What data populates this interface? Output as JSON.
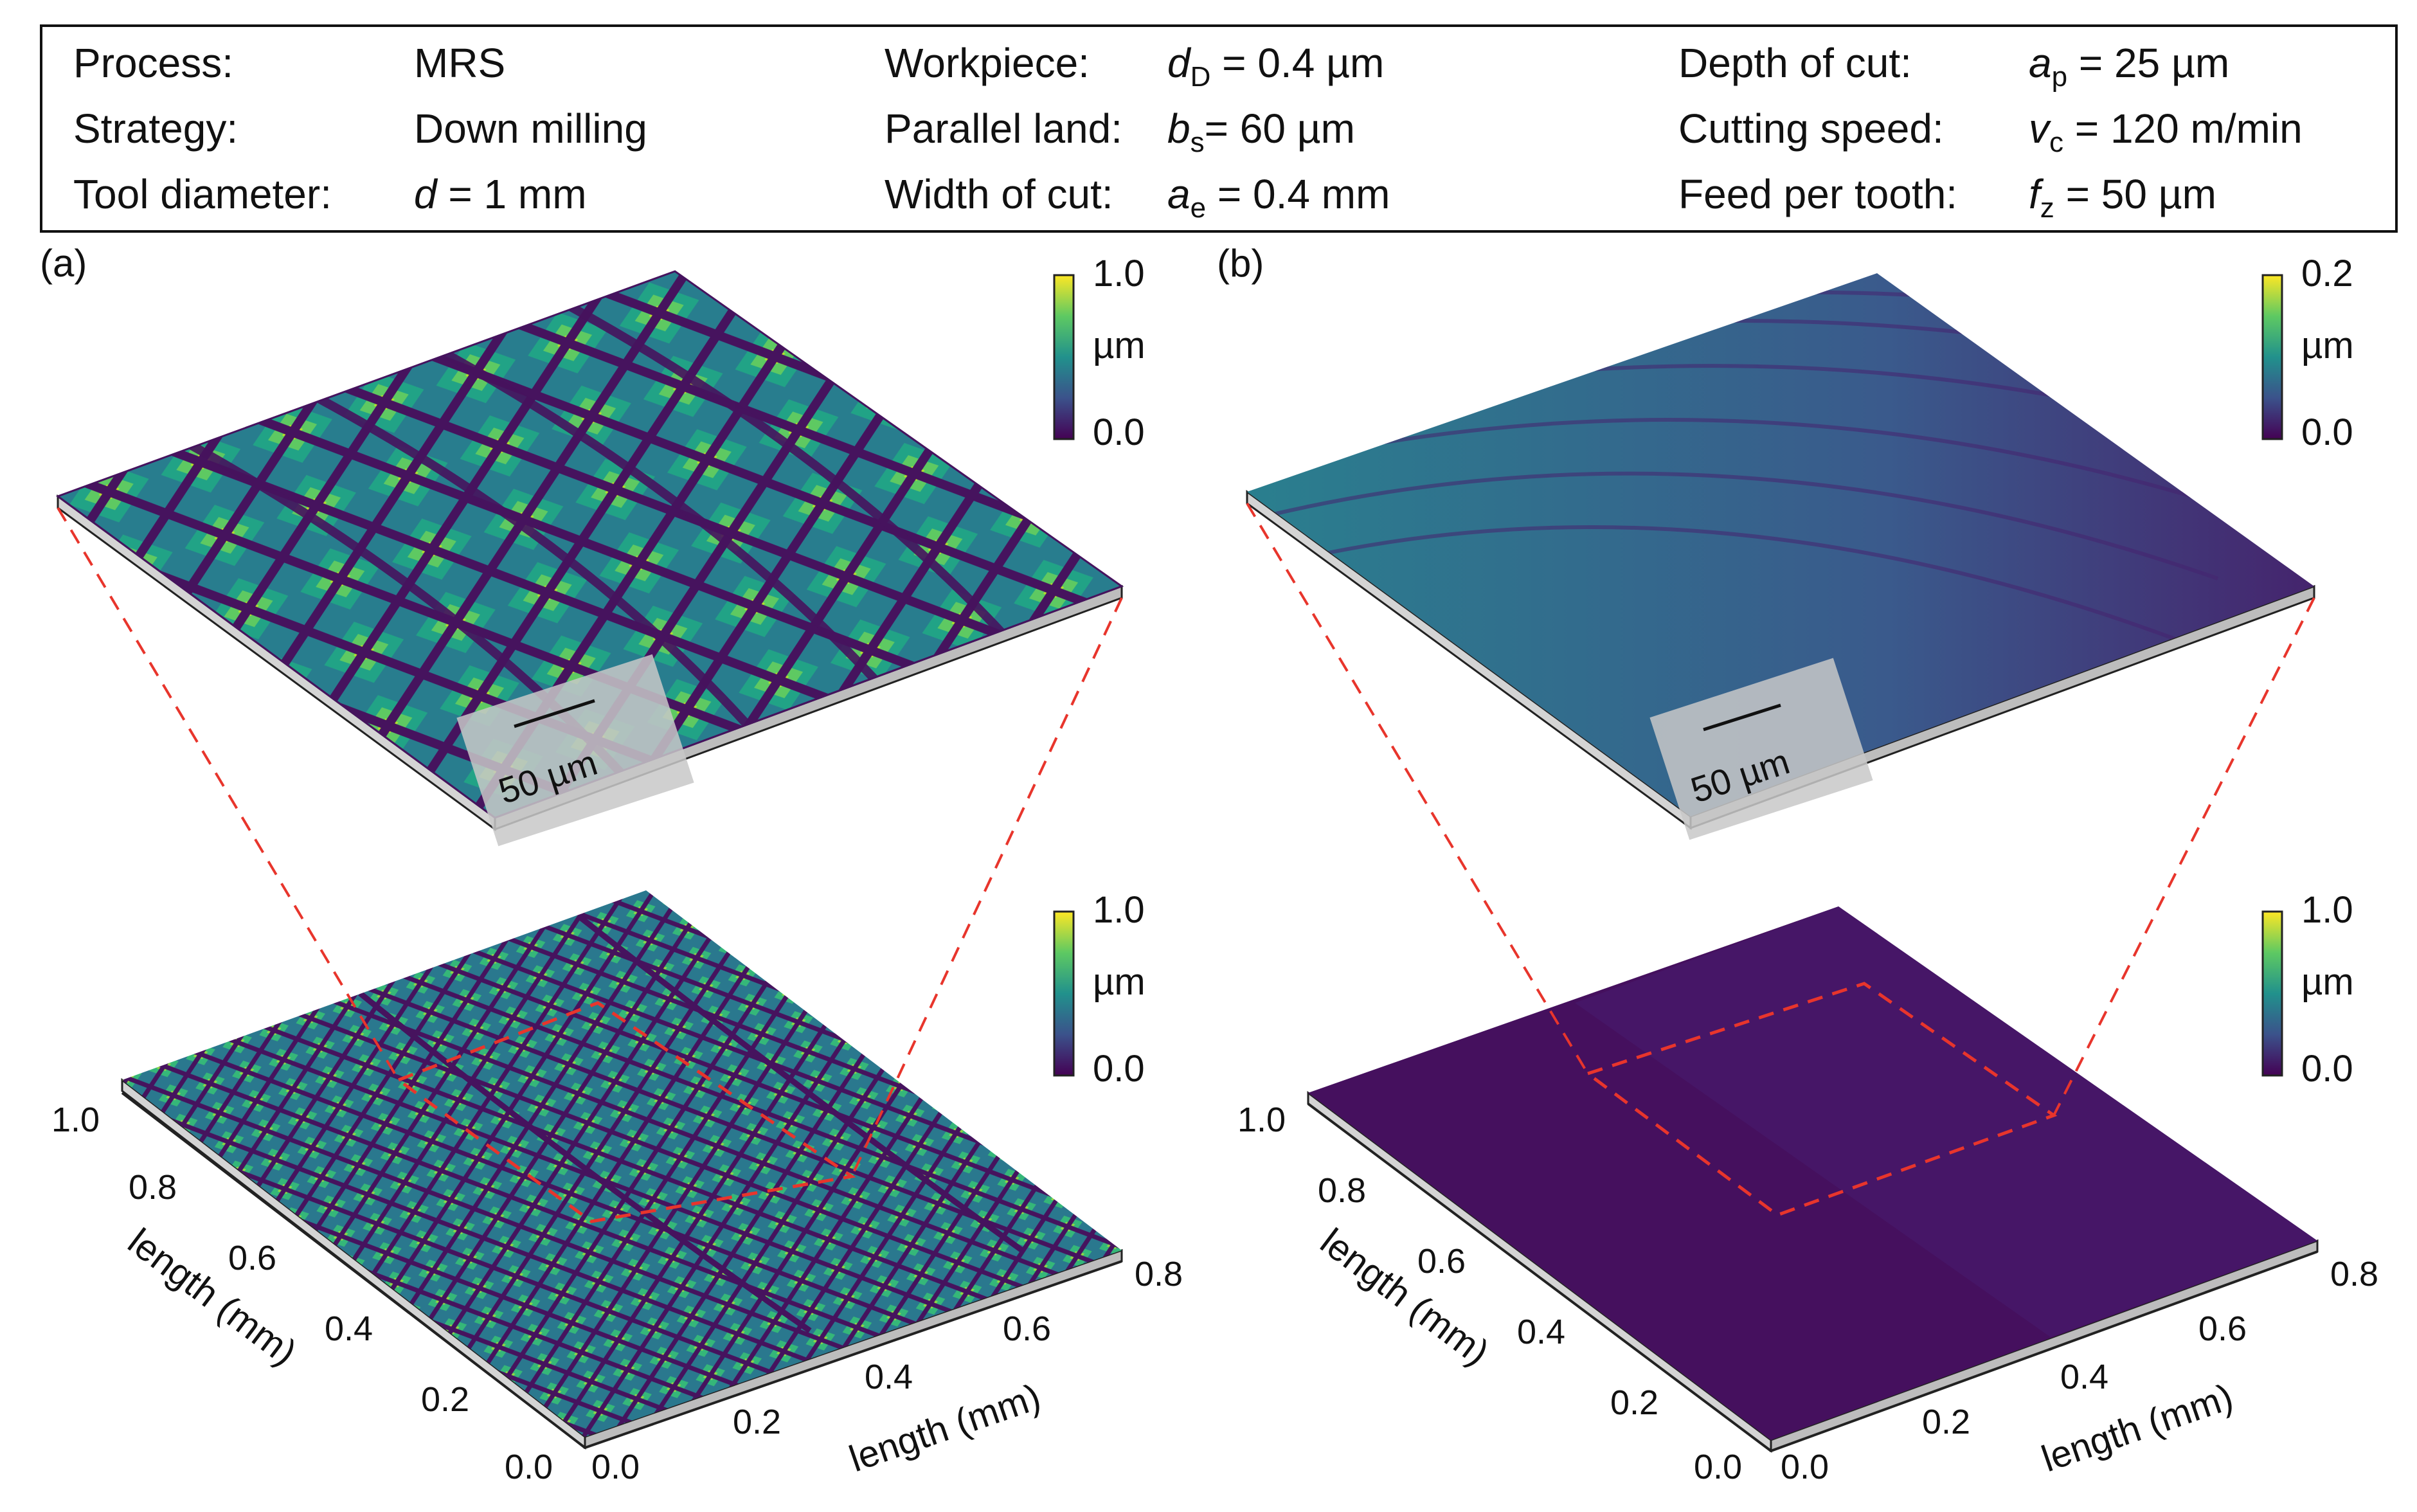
{
  "params": {
    "rows": [
      {
        "c1": {
          "label": "Process:",
          "sym": "",
          "sub": "",
          "rest": "MRS"
        },
        "c2": {
          "label": "Workpiece:",
          "sym": "d",
          "sub": "D",
          "rest": " = 0.4 µm"
        },
        "c3": {
          "label": "Depth of cut:",
          "sym": "a",
          "sub": "p",
          "rest": " = 25 µm"
        }
      },
      {
        "c1": {
          "label": "Strategy:",
          "sym": "",
          "sub": "",
          "rest": "Down milling"
        },
        "c2": {
          "label": "Parallel land:",
          "sym": "b",
          "sub": "s",
          "rest": "= 60 µm"
        },
        "c3": {
          "label": "Cutting speed:",
          "sym": "v",
          "sub": "c",
          "rest": " = 120 m/min"
        }
      },
      {
        "c1": {
          "label": "Tool diameter:",
          "sym": "d",
          "sub": "",
          "rest": " = 1 mm"
        },
        "c2": {
          "label": "Width of cut:",
          "sym": "a",
          "sub": "e",
          "rest": " = 0.4 mm"
        },
        "c3": {
          "label": "Feed per tooth:",
          "sym": "f",
          "sub": "z",
          "rest": " = 50 µm"
        }
      }
    ]
  },
  "panels": {
    "a": {
      "label": "(a)",
      "scalebar": "50 µm",
      "colorbar_top": {
        "max": "1.0",
        "unit": "µm",
        "min": "0.0"
      },
      "colorbar_bottom": {
        "max": "1.0",
        "unit": "µm",
        "min": "0.0"
      }
    },
    "b": {
      "label": "(b)",
      "scalebar": "50 µm",
      "colorbar_top": {
        "max": "0.2",
        "unit": "µm",
        "min": "0.0"
      },
      "colorbar_bottom": {
        "max": "1.0",
        "unit": "µm",
        "min": "0.0"
      }
    }
  },
  "axes": {
    "left_ticks": [
      "1.0",
      "0.8",
      "0.6",
      "0.4",
      "0.2",
      "0.0"
    ],
    "right_ticks": [
      "0.0",
      "0.2",
      "0.4",
      "0.6",
      "0.8"
    ],
    "left_label": "length (mm)",
    "right_label": "length (mm)"
  },
  "colors": {
    "viridis": [
      "#440154",
      "#3b528b",
      "#21918c",
      "#5ec962",
      "#fde725"
    ],
    "surface_dark": "#3f0f5c",
    "dashed": "#e8352c"
  }
}
